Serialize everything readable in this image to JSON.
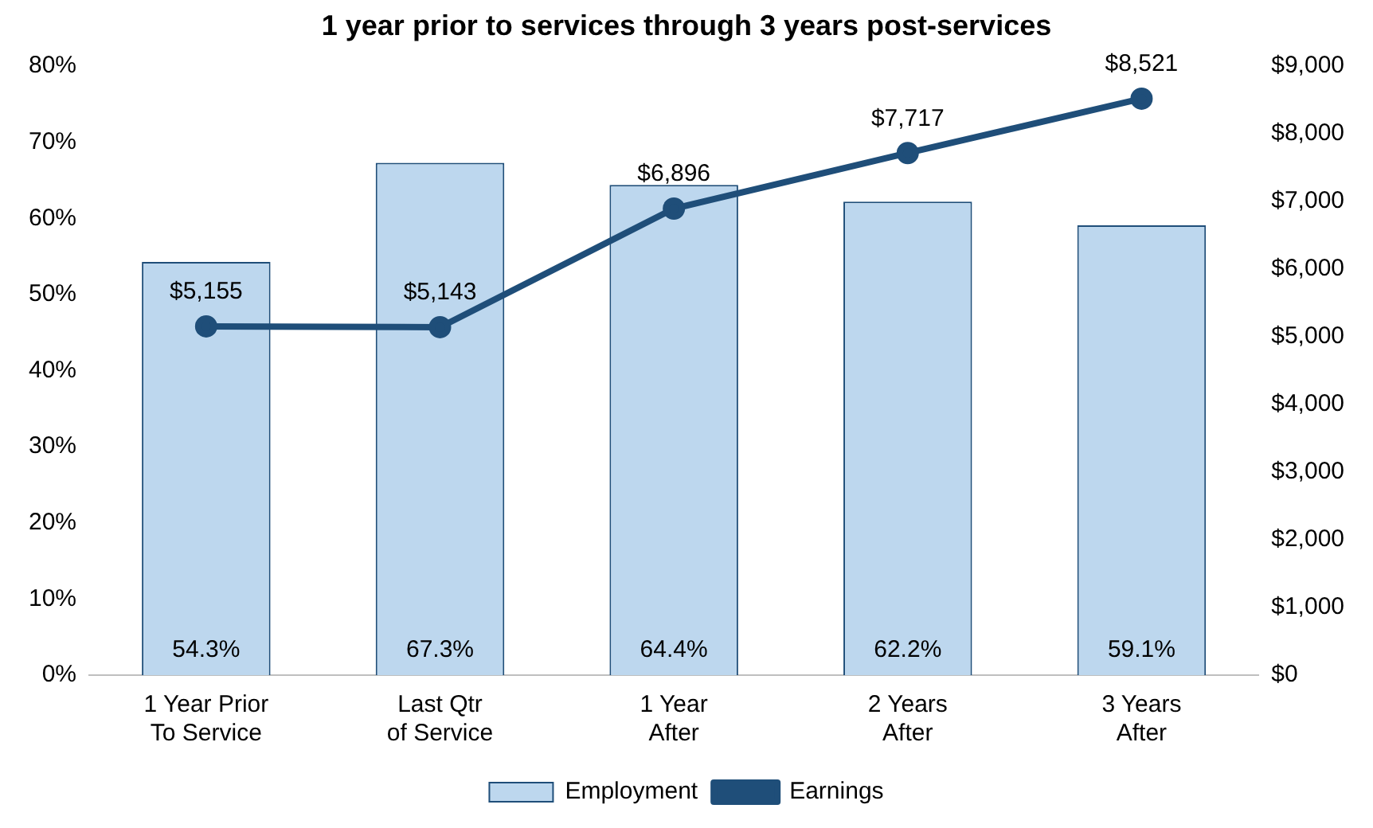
{
  "chart_data": {
    "type": "bar",
    "title": "1 year prior to services through 3 years post-services",
    "categories": [
      "1 Year Prior\nTo Service",
      "Last Qtr\nof Service",
      "1 Year\nAfter",
      "2 Years\nAfter",
      "3 Years\nAfter"
    ],
    "series": [
      {
        "name": "Employment",
        "color": "#bdd7ee",
        "values": [
          54.3,
          67.3,
          64.4,
          62.2,
          59.1
        ],
        "value_labels": [
          "54.3%",
          "67.3%",
          "64.4%",
          "62.2%",
          "59.1%"
        ]
      },
      {
        "name": "Earnings",
        "type": "line",
        "axis": "y2",
        "color": "#1f4e79",
        "values": [
          5155,
          5143,
          6896,
          7717,
          8521
        ],
        "value_labels": [
          "$5,155",
          "$5,143",
          "$6,896",
          "$7,717",
          "$8,521"
        ]
      }
    ],
    "ylim": [
      0,
      80
    ],
    "yticks": [
      {
        "value": 0,
        "label": "0%"
      },
      {
        "value": 10,
        "label": "10%"
      },
      {
        "value": 20,
        "label": "20%"
      },
      {
        "value": 30,
        "label": "30%"
      },
      {
        "value": 40,
        "label": "40%"
      },
      {
        "value": 50,
        "label": "50%"
      },
      {
        "value": 60,
        "label": "60%"
      },
      {
        "value": 70,
        "label": "70%"
      },
      {
        "value": 80,
        "label": "80%"
      }
    ],
    "y2lim": [
      0,
      9000
    ],
    "y2ticks": [
      {
        "value": 0,
        "label": "$0"
      },
      {
        "value": 1000,
        "label": "$1,000"
      },
      {
        "value": 2000,
        "label": "$2,000"
      },
      {
        "value": 3000,
        "label": "$3,000"
      },
      {
        "value": 4000,
        "label": "$4,000"
      },
      {
        "value": 5000,
        "label": "$5,000"
      },
      {
        "value": 6000,
        "label": "$6,000"
      },
      {
        "value": 7000,
        "label": "$7,000"
      },
      {
        "value": 8000,
        "label": "$8,000"
      },
      {
        "value": 9000,
        "label": "$9,000"
      }
    ],
    "legend": "bottom",
    "marker": "circle",
    "line_style": "solid"
  }
}
